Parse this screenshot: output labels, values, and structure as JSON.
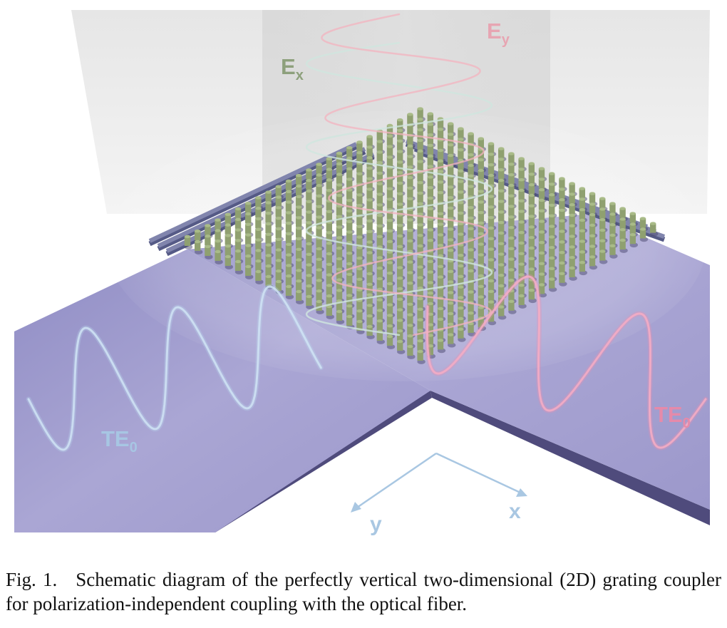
{
  "figure": {
    "labels": {
      "ex": {
        "main": "E",
        "sub": "x"
      },
      "ey": {
        "main": "E",
        "sub": "y"
      },
      "te_left": {
        "main": "TE",
        "sub": "0"
      },
      "te_right": {
        "main": "TE",
        "sub": "0"
      },
      "axis_x": "x",
      "axis_y": "y"
    },
    "colors": {
      "waveguide_top": "#a4a1cf",
      "waveguide_side": "#4f4b7c",
      "pillar": "#a9bb88",
      "rail": "#8185ad",
      "ex_label": "#8da07c",
      "ey_label": "#e7a5b2",
      "te_left_label": "#a7c6e3",
      "te_right_label": "#e58aaa",
      "axis": "#a9c7e2"
    }
  },
  "caption": {
    "label": "Fig. 1.",
    "text": "Schematic diagram of the perfectly vertical two-dimensional (2D) grating coupler for polarization-independent coupling with the optical fiber."
  }
}
